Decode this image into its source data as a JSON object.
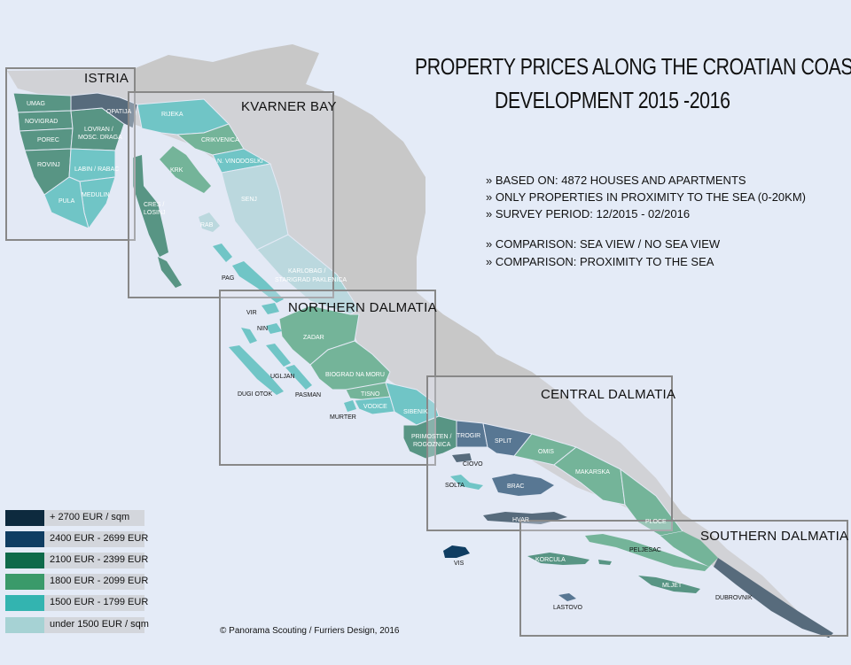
{
  "title": {
    "line1": "PROPERTY PRICES ALONG THE CROATIAN COAST",
    "line2": "DEVELOPMENT 2015 -2016"
  },
  "info": [
    "» BASED ON: 4872 HOUSES AND APARTMENTS",
    "» ONLY PROPERTIES IN PROXIMITY TO THE SEA (0-20KM)",
    "» SURVEY PERIOD: 12/2015 - 02/2016",
    "» COMPARISON: SEA VIEW / NO SEA VIEW",
    "» COMPARISON: PROXIMITY TO THE SEA"
  ],
  "regions": {
    "istria": "ISTRIA",
    "kvarner": "KVARNER BAY",
    "northern": "NORTHERN DALMATIA",
    "central": "CENTRAL DALMATIA",
    "southern": "SOUTHERN DALMATIA"
  },
  "legend": [
    {
      "label": "+ 2700 EUR / sqm",
      "color": "#0d2a3e"
    },
    {
      "label": "2400 EUR - 2699 EUR",
      "color": "#0f3d62"
    },
    {
      "label": "2100 EUR - 2399 EUR",
      "color": "#0e6a4a"
    },
    {
      "label": "1800 EUR - 2099 EUR",
      "color": "#3a9a6a"
    },
    {
      "label": "1500 EUR - 1799 EUR",
      "color": "#33b4b0"
    },
    {
      "label": "under 1500 EUR / sqm",
      "color": "#a6d2d4"
    }
  ],
  "places": {
    "umag": "UMAG",
    "novigrad": "NOVIGRAD",
    "porec": "POREC",
    "rovinj": "ROVINJ",
    "pula": "PULA",
    "medulin": "MEDULIN",
    "labin": "LABIN / RABAC",
    "lovran_1": "LOVRAN /",
    "lovran_2": "MOSC. DRAGA",
    "opatija": "OPATIJA",
    "rijeka": "RIJEKA",
    "crikvenica": "CRIKVENICA",
    "vinodolski": "N. VINODOSLKI",
    "krk": "KRK",
    "cres_1": "CRES /",
    "cres_2": "LOSINJ",
    "rab": "RAB",
    "senj": "SENJ",
    "pag": "PAG",
    "karlobag_1": "KARLOBAG /",
    "karlobag_2": "STARIGRAD PAKLENICA",
    "vir": "VIR",
    "nin": "NIN",
    "zadar": "ZADAR",
    "ugljan": "UGLJAN",
    "pasman": "PASMAN",
    "dugiotok": "DUGI OTOK",
    "biograd": "BIOGRAD NA MORU",
    "tisno": "TISNO",
    "vodice": "VODICE",
    "murter": "MURTER",
    "sibenik": "SIBENIK",
    "primosten_1": "PRIMOSTEN /",
    "primosten_2": "ROGOZNICA",
    "trogir": "TROGIR",
    "ciovo": "CIOVO",
    "split": "SPLIT",
    "omis": "OMIS",
    "solta": "SOLTA",
    "brac": "BRAC",
    "makarska": "MAKARSKA",
    "hvar": "HVAR",
    "ploce": "PLOCE",
    "vis": "VIS",
    "korcula": "KORCULA",
    "peljesac": "PELJESAC",
    "mljet": "MLJET",
    "lastovo": "LASTOVO",
    "dubrovnik": "DUBROVNIK"
  },
  "copyright": "© Panorama Scouting / Furriers Design, 2016"
}
